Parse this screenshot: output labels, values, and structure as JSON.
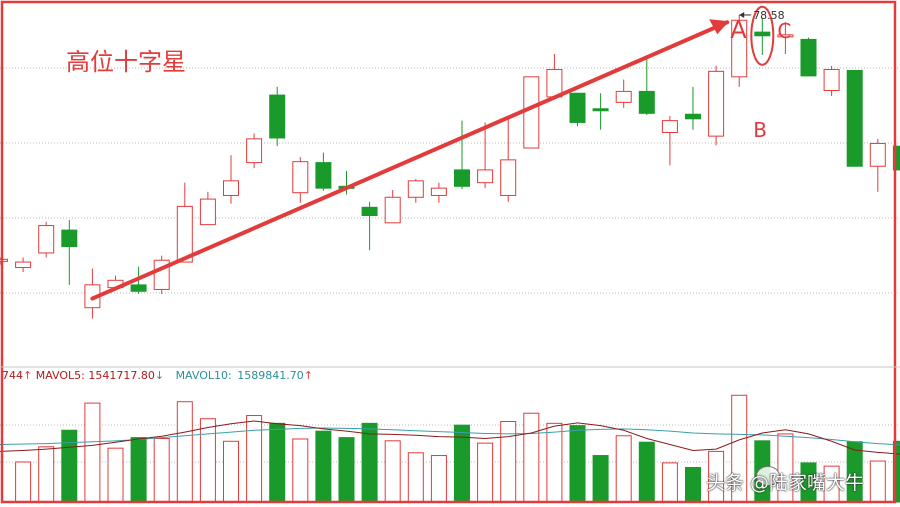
{
  "annotations": {
    "title": "高位十字星",
    "label_a": "A",
    "label_b": "B",
    "label_c": "C",
    "high_price_label": "78.58"
  },
  "volume_header": {
    "prefix": "744",
    "mavol5_label": "MAVOL5:",
    "mavol5_value": "1541717.80",
    "mavol5_arrow": "↑",
    "mavol10_label": "MAVOL10:",
    "mavol10_value": "1589841.70",
    "mavol10_arrow": "↑",
    "mid_arrow": "↓"
  },
  "watermark": "头条 @陆家嘴大牛",
  "colors": {
    "up": "#e23b3b",
    "down": "#1a9a2a",
    "ma5": "#8b1a1a",
    "ma10": "#3aa0a8",
    "frame": "#e23b3b",
    "grid": "#b8b8b8"
  },
  "chart_data": {
    "type": "candlestick",
    "price_ylim": [
      40,
      80
    ],
    "volume_ylim": [
      0,
      2500000
    ],
    "grid": "dotted-horizontal",
    "candles": [
      {
        "o": 51.8,
        "c": 51.8,
        "h": 52.0,
        "l": 51.2,
        "v": 0,
        "d": "up"
      },
      {
        "o": 51.5,
        "c": 50.9,
        "h": 52.0,
        "l": 50.4,
        "v": 870000,
        "d": "up"
      },
      {
        "o": 52.5,
        "c": 55.5,
        "h": 55.9,
        "l": 52.0,
        "v": 1200000,
        "d": "up"
      },
      {
        "o": 55.0,
        "c": 53.2,
        "h": 56.1,
        "l": 49.0,
        "v": 1560000,
        "d": "down"
      },
      {
        "o": 46.5,
        "c": 49.0,
        "h": 50.8,
        "l": 45.3,
        "v": 2150000,
        "d": "up"
      },
      {
        "o": 48.7,
        "c": 49.5,
        "h": 50.0,
        "l": 48.7,
        "v": 1170000,
        "d": "up"
      },
      {
        "o": 49.0,
        "c": 48.3,
        "h": 51.0,
        "l": 48.0,
        "v": 1400000,
        "d": "down"
      },
      {
        "o": 48.5,
        "c": 51.7,
        "h": 52.2,
        "l": 48.0,
        "v": 1380000,
        "d": "up"
      },
      {
        "o": 51.5,
        "c": 57.6,
        "h": 60.2,
        "l": 51.5,
        "v": 2180000,
        "d": "up"
      },
      {
        "o": 55.6,
        "c": 58.4,
        "h": 59.2,
        "l": 55.6,
        "v": 1810000,
        "d": "up"
      },
      {
        "o": 58.8,
        "c": 60.4,
        "h": 63.2,
        "l": 57.9,
        "v": 1320000,
        "d": "up"
      },
      {
        "o": 62.4,
        "c": 65.0,
        "h": 65.6,
        "l": 61.8,
        "v": 1880000,
        "d": "up"
      },
      {
        "o": 69.8,
        "c": 65.1,
        "h": 70.7,
        "l": 64.2,
        "v": 1710000,
        "d": "down"
      },
      {
        "o": 59.1,
        "c": 62.5,
        "h": 63.0,
        "l": 58.0,
        "v": 1370000,
        "d": "up"
      },
      {
        "o": 62.4,
        "c": 59.6,
        "h": 63.5,
        "l": 59.3,
        "v": 1540000,
        "d": "down"
      },
      {
        "o": 59.8,
        "c": 59.6,
        "h": 61.5,
        "l": 58.9,
        "v": 1400000,
        "d": "down"
      },
      {
        "o": 57.5,
        "c": 56.6,
        "h": 58.1,
        "l": 52.8,
        "v": 1710000,
        "d": "down"
      },
      {
        "o": 55.8,
        "c": 58.6,
        "h": 59.4,
        "l": 55.8,
        "v": 1330000,
        "d": "up"
      },
      {
        "o": 58.6,
        "c": 60.4,
        "h": 60.6,
        "l": 58.0,
        "v": 1070000,
        "d": "up"
      },
      {
        "o": 58.8,
        "c": 59.6,
        "h": 60.2,
        "l": 58.0,
        "v": 1010000,
        "d": "up"
      },
      {
        "o": 61.6,
        "c": 59.8,
        "h": 67.0,
        "l": 59.5,
        "v": 1670000,
        "d": "down"
      },
      {
        "o": 60.2,
        "c": 61.6,
        "h": 66.8,
        "l": 59.6,
        "v": 1280000,
        "d": "up"
      },
      {
        "o": 58.8,
        "c": 62.7,
        "h": 67.2,
        "l": 58.1,
        "v": 1750000,
        "d": "up"
      },
      {
        "o": 64.0,
        "c": 71.8,
        "h": 71.8,
        "l": 64.0,
        "v": 1930000,
        "d": "up"
      },
      {
        "o": 69.6,
        "c": 72.6,
        "h": 74.3,
        "l": 69.6,
        "v": 1710000,
        "d": "up"
      },
      {
        "o": 70.0,
        "c": 66.8,
        "h": 70.0,
        "l": 66.4,
        "v": 1660000,
        "d": "down"
      },
      {
        "o": 68.3,
        "c": 68.2,
        "h": 70.0,
        "l": 66.0,
        "v": 1010000,
        "d": "down"
      },
      {
        "o": 69.0,
        "c": 70.2,
        "h": 71.5,
        "l": 68.4,
        "v": 1440000,
        "d": "up"
      },
      {
        "o": 70.2,
        "c": 67.8,
        "h": 73.8,
        "l": 67.6,
        "v": 1300000,
        "d": "down"
      },
      {
        "o": 65.7,
        "c": 67.0,
        "h": 67.5,
        "l": 62.1,
        "v": 850000,
        "d": "up"
      },
      {
        "o": 67.7,
        "c": 67.2,
        "h": 70.7,
        "l": 66.0,
        "v": 750000,
        "d": "down"
      },
      {
        "o": 65.3,
        "c": 72.4,
        "h": 73.0,
        "l": 64.3,
        "v": 1100000,
        "d": "up"
      },
      {
        "o": 71.8,
        "c": 78.0,
        "h": 78.58,
        "l": 70.7,
        "v": 2320000,
        "d": "up"
      },
      {
        "o": 76.7,
        "c": 76.3,
        "h": 78.2,
        "l": 74.2,
        "v": 1330000,
        "d": "down"
      },
      {
        "o": 76.4,
        "c": 76.2,
        "h": 77.8,
        "l": 74.3,
        "v": 1480000,
        "d": "up"
      },
      {
        "o": 75.9,
        "c": 71.9,
        "h": 76.1,
        "l": 71.9,
        "v": 850000,
        "d": "down"
      },
      {
        "o": 70.3,
        "c": 72.6,
        "h": 73.0,
        "l": 69.7,
        "v": 780000,
        "d": "up"
      },
      {
        "o": 72.5,
        "c": 62.0,
        "h": 72.5,
        "l": 62.0,
        "v": 1310000,
        "d": "down"
      },
      {
        "o": 62.0,
        "c": 64.5,
        "h": 65.0,
        "l": 59.2,
        "v": 890000,
        "d": "up"
      },
      {
        "o": 64.2,
        "c": 61.6,
        "h": 64.5,
        "l": 61.6,
        "v": 1320000,
        "d": "down"
      },
      {
        "o": 61.3,
        "c": 54.3,
        "h": 61.6,
        "l": 53.8,
        "v": 1240000,
        "d": "down"
      },
      {
        "o": 54.5,
        "c": 56.0,
        "h": 57.3,
        "l": 54.0,
        "v": 1050000,
        "d": "up"
      }
    ],
    "ma5_volume": [
      1100000,
      1120000,
      1150000,
      1190000,
      1230000,
      1300000,
      1370000,
      1430000,
      1520000,
      1620000,
      1700000,
      1760000,
      1700000,
      1660000,
      1590000,
      1540000,
      1480000,
      1470000,
      1450000,
      1420000,
      1410000,
      1380000,
      1420000,
      1500000,
      1650000,
      1720000,
      1660000,
      1560000,
      1380000,
      1250000,
      1120000,
      1150000,
      1350000,
      1500000,
      1570000,
      1480000,
      1320000,
      1130000,
      1080000,
      1040000,
      1060000,
      1120000
    ],
    "ma10_volume": [
      1250000,
      1260000,
      1270000,
      1290000,
      1310000,
      1330000,
      1360000,
      1400000,
      1440000,
      1480000,
      1520000,
      1560000,
      1580000,
      1600000,
      1610000,
      1600000,
      1590000,
      1570000,
      1550000,
      1530000,
      1510000,
      1490000,
      1480000,
      1490000,
      1520000,
      1560000,
      1580000,
      1590000,
      1570000,
      1540000,
      1500000,
      1480000,
      1470000,
      1460000,
      1430000,
      1400000,
      1360000,
      1310000,
      1270000,
      1240000,
      1210000,
      1190000
    ]
  }
}
